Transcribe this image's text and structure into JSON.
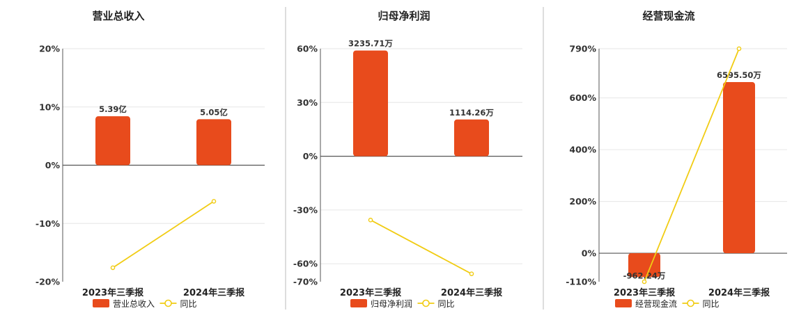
{
  "colors": {
    "bar": "#E84B1C",
    "line": "#F1CC13",
    "grid": "#e6e6e6",
    "axis": "#555555",
    "divider": "#bbbbbb"
  },
  "chart_data": [
    {
      "type": "bar+line",
      "title": "营业总收入",
      "categories": [
        "2023年三季报",
        "2024年三季报"
      ],
      "ylim": [
        -20,
        20
      ],
      "ticks": [
        "20%",
        "10%",
        "0%",
        "-10%",
        "-20%"
      ],
      "tick_values": [
        20,
        10,
        0,
        -10,
        -20
      ],
      "series": [
        {
          "name": "营业总收入",
          "kind": "bar",
          "values": [
            8.4,
            7.9
          ],
          "labels": [
            "5.39亿",
            "5.05亿"
          ]
        },
        {
          "name": "同比",
          "kind": "line",
          "values": [
            -17.6,
            -6.2
          ]
        }
      ],
      "grid": true,
      "legend_position": "bottom"
    },
    {
      "type": "bar+line",
      "title": "归母净利润",
      "categories": [
        "2023年三季报",
        "2024年三季报"
      ],
      "ylim": [
        -70,
        60
      ],
      "ticks": [
        "60%",
        "30%",
        "0%",
        "-30%",
        "-60%",
        "-70%"
      ],
      "tick_values": [
        60,
        30,
        0,
        -30,
        -60,
        -70
      ],
      "series": [
        {
          "name": "归母净利润",
          "kind": "bar",
          "values": [
            59,
            20.5
          ],
          "labels": [
            "3235.71万",
            "1114.26万"
          ]
        },
        {
          "name": "同比",
          "kind": "line",
          "values": [
            -35.6,
            -65.6
          ]
        }
      ],
      "grid": true,
      "legend_position": "bottom"
    },
    {
      "type": "bar+line",
      "title": "经营现金流",
      "categories": [
        "2023年三季报",
        "2024年三季报"
      ],
      "ylim": [
        -110,
        790
      ],
      "ticks": [
        "790%",
        "600%",
        "400%",
        "200%",
        "0%",
        "-110%"
      ],
      "tick_values": [
        790,
        600,
        400,
        200,
        0,
        -110
      ],
      "series": [
        {
          "name": "经营现金流",
          "kind": "bar",
          "values": [
            -92,
            661
          ],
          "labels": [
            "-962.24万",
            "6595.50万"
          ]
        },
        {
          "name": "同比",
          "kind": "line",
          "values": [
            -110,
            790
          ]
        }
      ],
      "grid": true,
      "legend_position": "bottom"
    }
  ]
}
